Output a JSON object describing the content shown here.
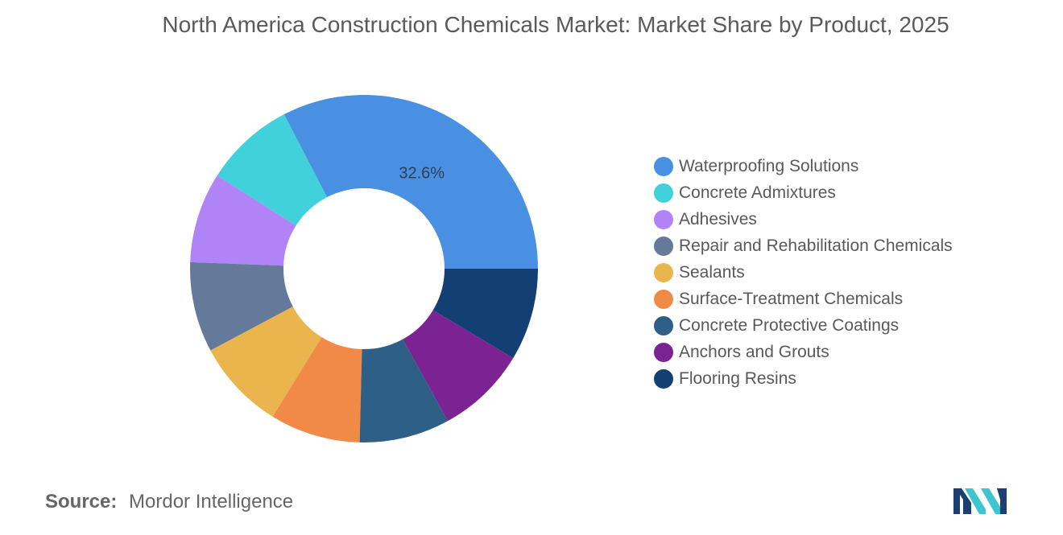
{
  "chart_data": {
    "type": "pie",
    "title": "North America Construction Chemicals Market: Market Share by Product, 2025",
    "categories": [
      "Waterproofing Solutions",
      "Concrete Admixtures",
      "Adhesives",
      "Repair and Rehabilitation Chemicals",
      "Sealants",
      "Surface-Treatment Chemicals",
      "Concrete Protective Coatings",
      "Anchors and Grouts",
      "Flooring Resins"
    ],
    "values": [
      32.6,
      8.4,
      8.4,
      8.4,
      8.4,
      8.4,
      8.4,
      8.4,
      8.6
    ],
    "colors": [
      "#4a90e2",
      "#41d1da",
      "#b084f7",
      "#657a9a",
      "#ebb54e",
      "#f18a46",
      "#2e5f87",
      "#7b2393",
      "#133f72"
    ],
    "data_labels": [
      {
        "index": 0,
        "text": "32.6%"
      }
    ],
    "donut": true,
    "legend_position": "right"
  },
  "footer": {
    "source_label": "Source:",
    "source_text": "Mordor Intelligence"
  },
  "logo": {
    "icon": "mordor-intelligence-logo-icon",
    "colors": [
      "#1b3f72",
      "#3dc6d0"
    ]
  }
}
